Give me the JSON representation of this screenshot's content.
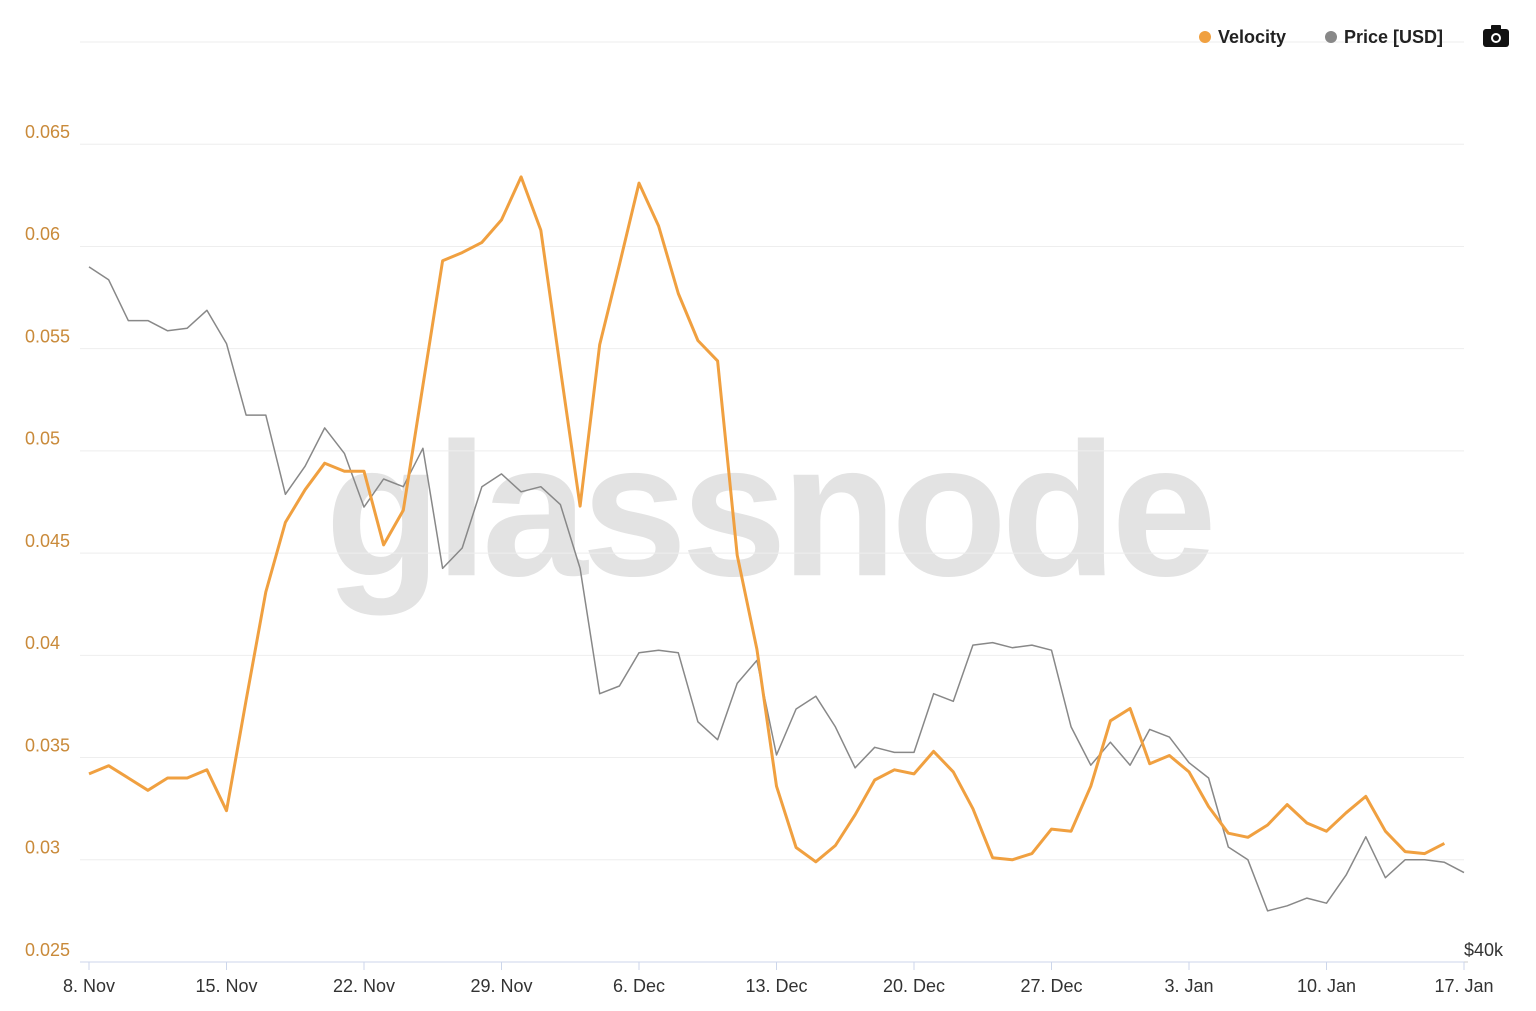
{
  "chart_data": {
    "type": "line",
    "watermark": "glassnode",
    "categories": [
      "8. Nov",
      null,
      null,
      null,
      null,
      null,
      null,
      "15. Nov",
      null,
      null,
      null,
      null,
      null,
      null,
      "22. Nov",
      null,
      null,
      null,
      null,
      null,
      null,
      "29. Nov",
      null,
      null,
      null,
      null,
      null,
      null,
      "6. Dec",
      null,
      null,
      null,
      null,
      null,
      null,
      "13. Dec",
      null,
      null,
      null,
      null,
      null,
      null,
      "20. Dec",
      null,
      null,
      null,
      null,
      null,
      null,
      "27. Dec",
      null,
      null,
      null,
      null,
      null,
      null,
      "3. Jan",
      null,
      null,
      null,
      null,
      null,
      null,
      "10. Jan",
      null,
      null,
      null,
      null,
      null,
      null,
      "17. Jan"
    ],
    "series": [
      {
        "name": "Velocity",
        "color": "#f0a040",
        "axis": "y",
        "values": [
          0.0342,
          0.0346,
          0.034,
          0.0334,
          0.034,
          0.034,
          0.0344,
          0.0324,
          0.0378,
          0.0431,
          0.0465,
          0.0481,
          0.0494,
          0.049,
          0.049,
          0.0454,
          0.0471,
          0.0532,
          0.0593,
          0.0597,
          0.0602,
          0.0613,
          0.0634,
          0.0608,
          0.054,
          0.0473,
          0.0552,
          0.0591,
          0.0631,
          0.061,
          0.0577,
          0.0554,
          0.0544,
          0.0449,
          0.0403,
          0.0336,
          0.0306,
          0.0299,
          0.0307,
          0.0322,
          0.0339,
          0.0344,
          0.0342,
          0.0353,
          0.0343,
          0.0325,
          0.0301,
          0.03,
          0.0303,
          0.0315,
          0.0314,
          0.0336,
          0.0368,
          0.0374,
          0.0347,
          0.0351,
          0.0343,
          0.0326,
          0.0313,
          0.0311,
          0.0317,
          0.0327,
          0.0318,
          0.0314,
          0.0323,
          0.0331,
          0.0314,
          0.0304,
          0.0303,
          0.0308,
          null
        ]
      },
      {
        "name": "Price [USD]",
        "color": "#888888",
        "axis": "y2",
        "values": [
          67200,
          66700,
          65100,
          65100,
          64700,
          64800,
          65500,
          64200,
          61400,
          61400,
          58300,
          59400,
          60900,
          59900,
          57800,
          58900,
          58600,
          60100,
          55400,
          56200,
          58600,
          59100,
          58400,
          58600,
          57900,
          55400,
          50500,
          50800,
          52100,
          52200,
          52100,
          49400,
          48700,
          50900,
          51800,
          48100,
          49900,
          50400,
          49200,
          47600,
          48400,
          48200,
          48200,
          50500,
          50200,
          52400,
          52500,
          52300,
          52400,
          52200,
          49200,
          47700,
          48600,
          47700,
          49100,
          48800,
          47800,
          47200,
          44500,
          44000,
          42000,
          42200,
          42500,
          42300,
          43400,
          44900,
          43300,
          44000,
          44000,
          43900,
          43500
        ]
      }
    ],
    "ylim": [
      0.025,
      0.07
    ],
    "yticks": [
      0.025,
      0.03,
      0.035,
      0.04,
      0.045,
      0.05,
      0.055,
      0.06,
      0.065
    ],
    "y2lim": [
      40000,
      76000
    ],
    "y2ticks": [
      {
        "value": 40000,
        "label": "$40k"
      }
    ],
    "grid": true,
    "legend": "top-right"
  }
}
